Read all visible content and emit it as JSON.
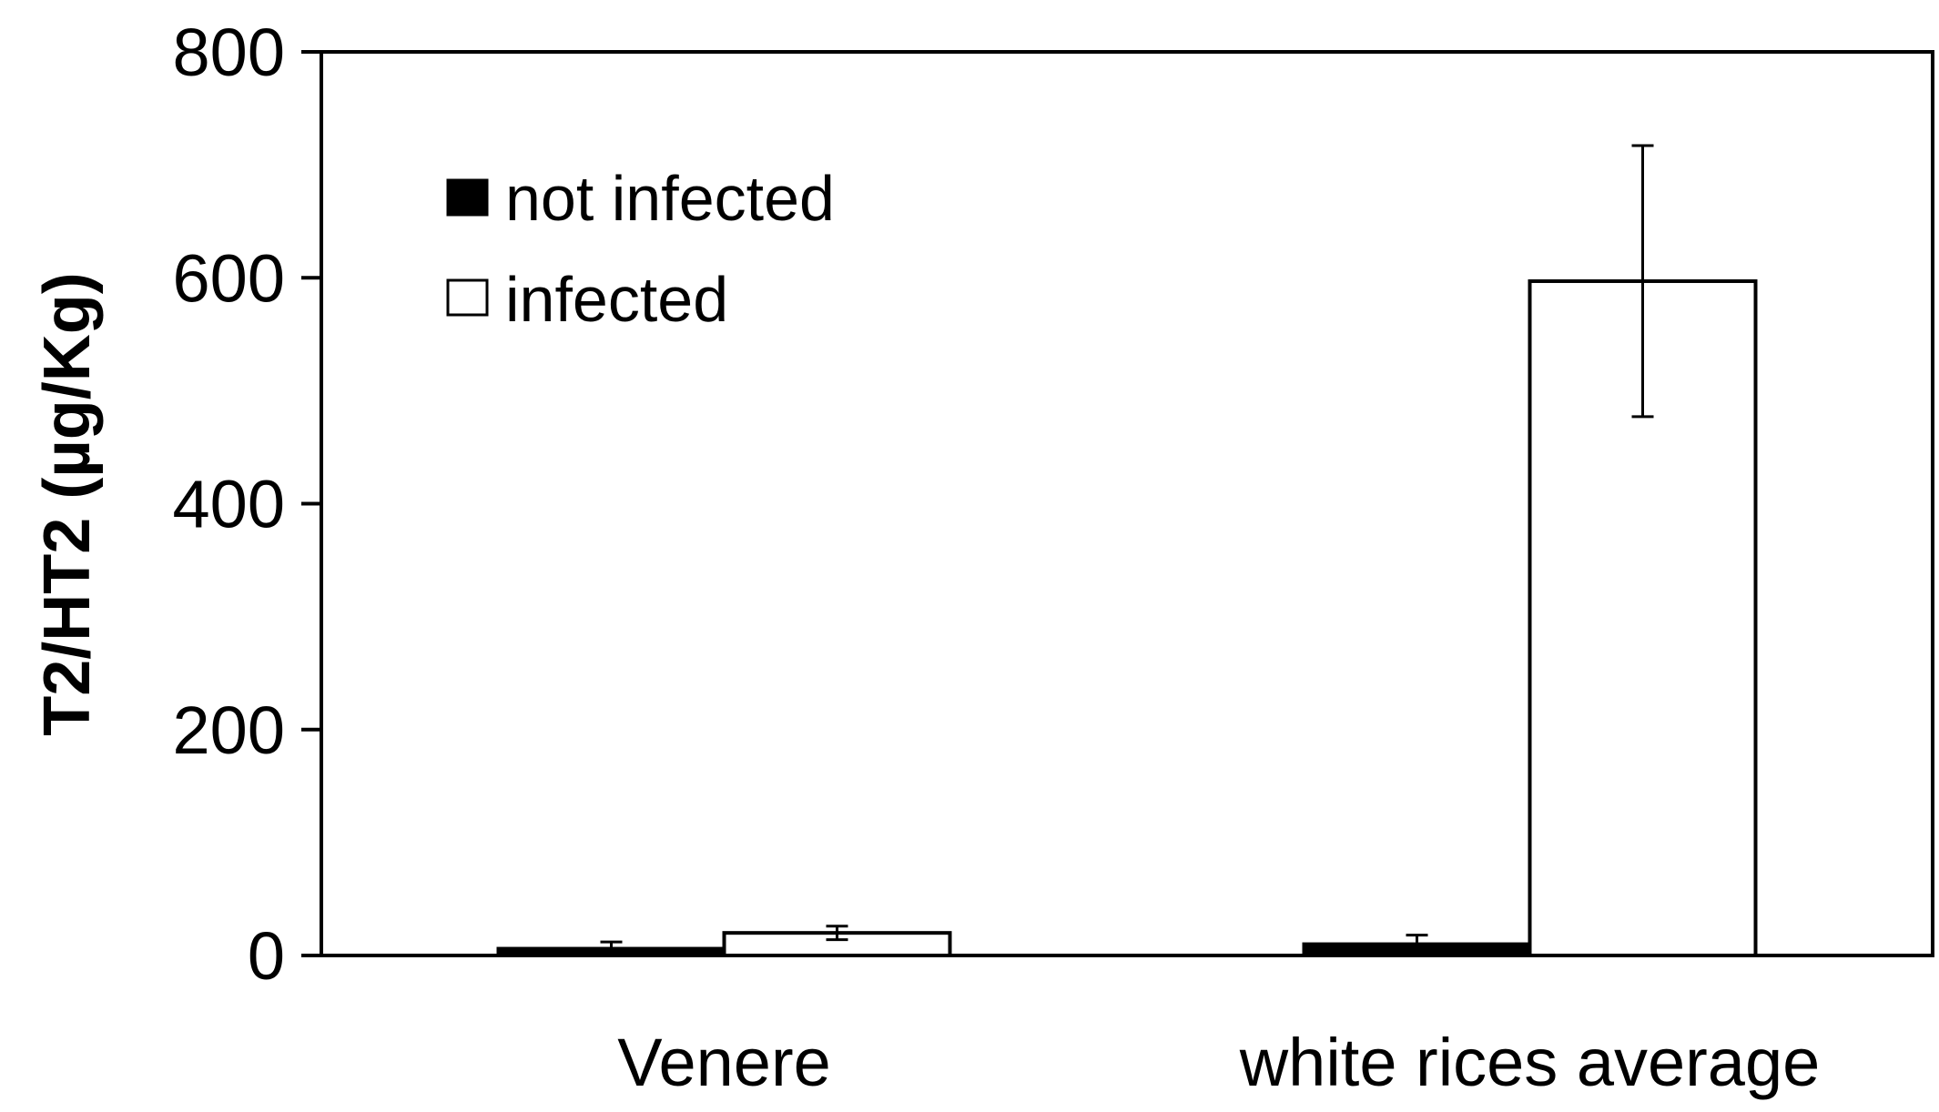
{
  "chart_data": {
    "type": "bar",
    "title": "",
    "xlabel": "",
    "ylabel": "T2/HT2 (µg/Kg)",
    "ylim": [
      0,
      800
    ],
    "yticks": [
      "0",
      "200",
      "400",
      "600",
      "800"
    ],
    "ytick_values": [
      0,
      200,
      400,
      600,
      800
    ],
    "categories": [
      "Venere",
      "white rices average"
    ],
    "series": [
      {
        "name": "not infected",
        "fill": "#000000",
        "values": [
          6,
          10
        ],
        "errors": [
          6,
          8
        ]
      },
      {
        "name": "infected",
        "fill": "#ffffff",
        "values": [
          20,
          597
        ],
        "errors": [
          6,
          120
        ]
      }
    ],
    "legend_position": "top-left",
    "grid": false
  }
}
